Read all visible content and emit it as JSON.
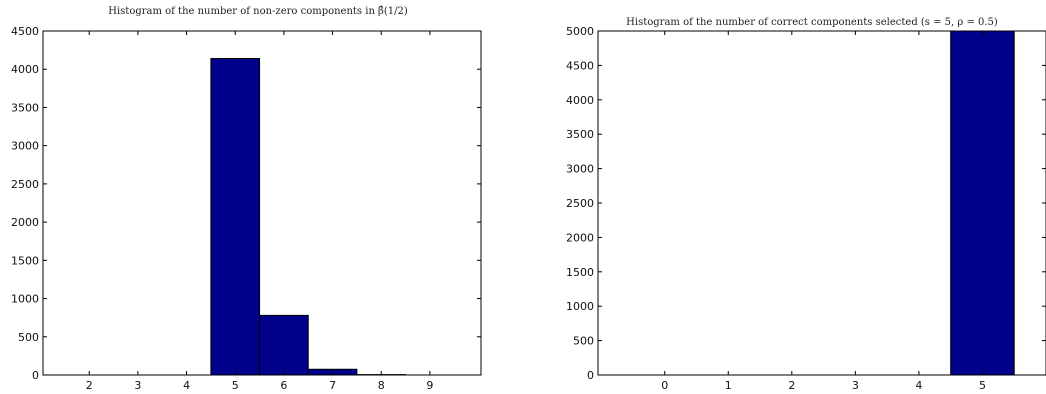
{
  "chart_data": [
    {
      "type": "bar",
      "title": "Histogram of the number of non-zero components in β̂(1/2)",
      "xlabel": "",
      "ylabel": "",
      "categories": [
        2,
        3,
        4,
        5,
        6,
        7,
        8,
        9
      ],
      "values": [
        0,
        0,
        0,
        4140,
        780,
        75,
        5,
        0
      ],
      "xlim": [
        1.05,
        10.05
      ],
      "ylim": [
        0,
        4500
      ],
      "xticks": [
        2,
        3,
        4,
        5,
        6,
        7,
        8,
        9
      ],
      "yticks": [
        0,
        500,
        1000,
        1500,
        2000,
        2500,
        3000,
        3500,
        4000,
        4500
      ],
      "bar_color": "#00008b",
      "grid": false
    },
    {
      "type": "bar",
      "title": "Histogram of the number of correct components selected (s = 5, ρ = 0.5)",
      "xlabel": "",
      "ylabel": "",
      "categories": [
        0,
        1,
        2,
        3,
        4,
        5
      ],
      "values": [
        0,
        0,
        0,
        0,
        0,
        5000
      ],
      "xlim": [
        -1.05,
        6.0
      ],
      "ylim": [
        0,
        5000
      ],
      "xticks": [
        0,
        1,
        2,
        3,
        4,
        5
      ],
      "yticks": [
        0,
        500,
        1000,
        1500,
        2000,
        2500,
        3000,
        3500,
        4000,
        4500,
        5000
      ],
      "bar_color": "#00008b",
      "grid": false
    }
  ]
}
